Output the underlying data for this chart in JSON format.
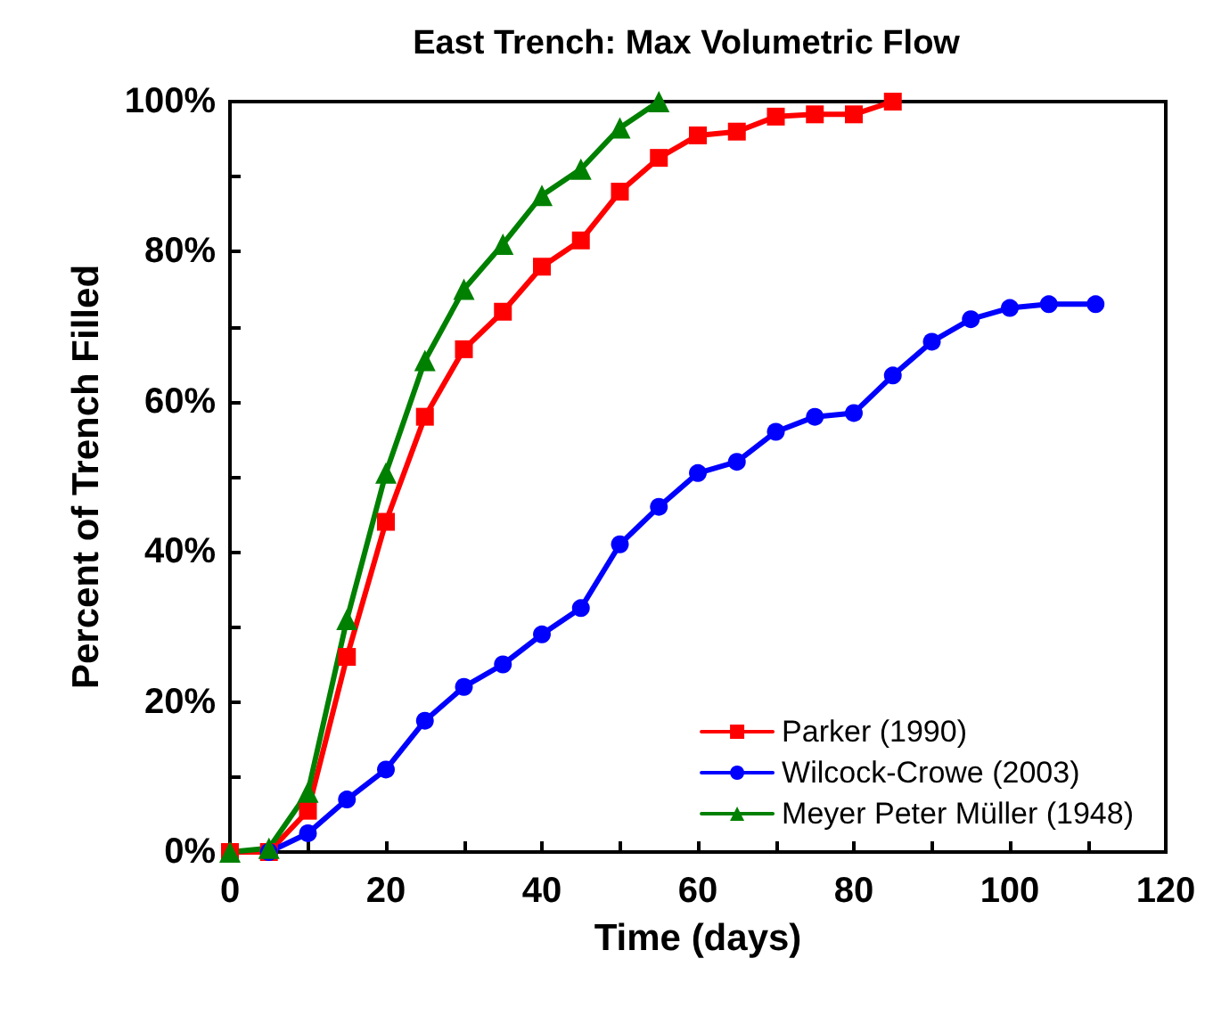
{
  "chart_data": {
    "type": "line",
    "title": "East Trench: Max Volumetric Flow",
    "xlabel": "Time (days)",
    "ylabel": "Percent of Trench Filled",
    "xlim": [
      0,
      120
    ],
    "ylim": [
      0,
      100
    ],
    "xticks": [
      0,
      {
        "value": 10,
        "label": null
      },
      20,
      {
        "value": 30,
        "label": null
      },
      40,
      {
        "value": 50,
        "label": null
      },
      60,
      {
        "value": 70,
        "label": null
      },
      80,
      {
        "value": 90,
        "label": null
      },
      100,
      {
        "value": 110,
        "label": null
      },
      120
    ],
    "yticks": [
      {
        "value": 0,
        "label": "0%"
      },
      {
        "value": 10,
        "label": null
      },
      {
        "value": 20,
        "label": "20%"
      },
      {
        "value": 30,
        "label": null
      },
      {
        "value": 40,
        "label": "40%"
      },
      {
        "value": 50,
        "label": null
      },
      {
        "value": 60,
        "label": "60%"
      },
      {
        "value": 70,
        "label": null
      },
      {
        "value": 80,
        "label": "80%"
      },
      {
        "value": 90,
        "label": null
      },
      {
        "value": 100,
        "label": "100%"
      }
    ],
    "grid": false,
    "legend": "bottom right",
    "line_style": "solid",
    "series": [
      {
        "name": "Parker (1990)",
        "color": "#ff0000",
        "marker": "square",
        "x": [
          0,
          5,
          10,
          15,
          20,
          25,
          30,
          35,
          40,
          45,
          50,
          55,
          60,
          65,
          70,
          75,
          80,
          85
        ],
        "values": [
          0,
          0,
          5.5,
          26,
          44,
          58,
          67,
          72,
          78,
          81.5,
          88,
          92.5,
          95.5,
          96,
          98,
          98.3,
          98.3,
          100
        ]
      },
      {
        "name": "Wilcock-Crowe (2003)",
        "color": "#0000ff",
        "marker": "circle",
        "x": [
          5,
          10,
          15,
          20,
          25,
          30,
          35,
          40,
          45,
          50,
          55,
          60,
          65,
          70,
          75,
          80,
          85,
          90,
          95,
          100,
          105,
          111
        ],
        "values": [
          0,
          2.5,
          7,
          11,
          17.5,
          22,
          25,
          29,
          32.5,
          41,
          46,
          50.5,
          52,
          56,
          58,
          58.5,
          63.5,
          68,
          71,
          72.5,
          73,
          73
        ]
      },
      {
        "name": "Meyer Peter Müller (1948)",
        "color": "#008000",
        "marker": "triangle",
        "x": [
          0,
          5,
          10,
          15,
          20,
          25,
          30,
          35,
          40,
          45,
          50,
          55
        ],
        "values": [
          0,
          0.5,
          8,
          31,
          50.5,
          65.5,
          75,
          81,
          87.5,
          91,
          96.5,
          100
        ]
      }
    ]
  }
}
